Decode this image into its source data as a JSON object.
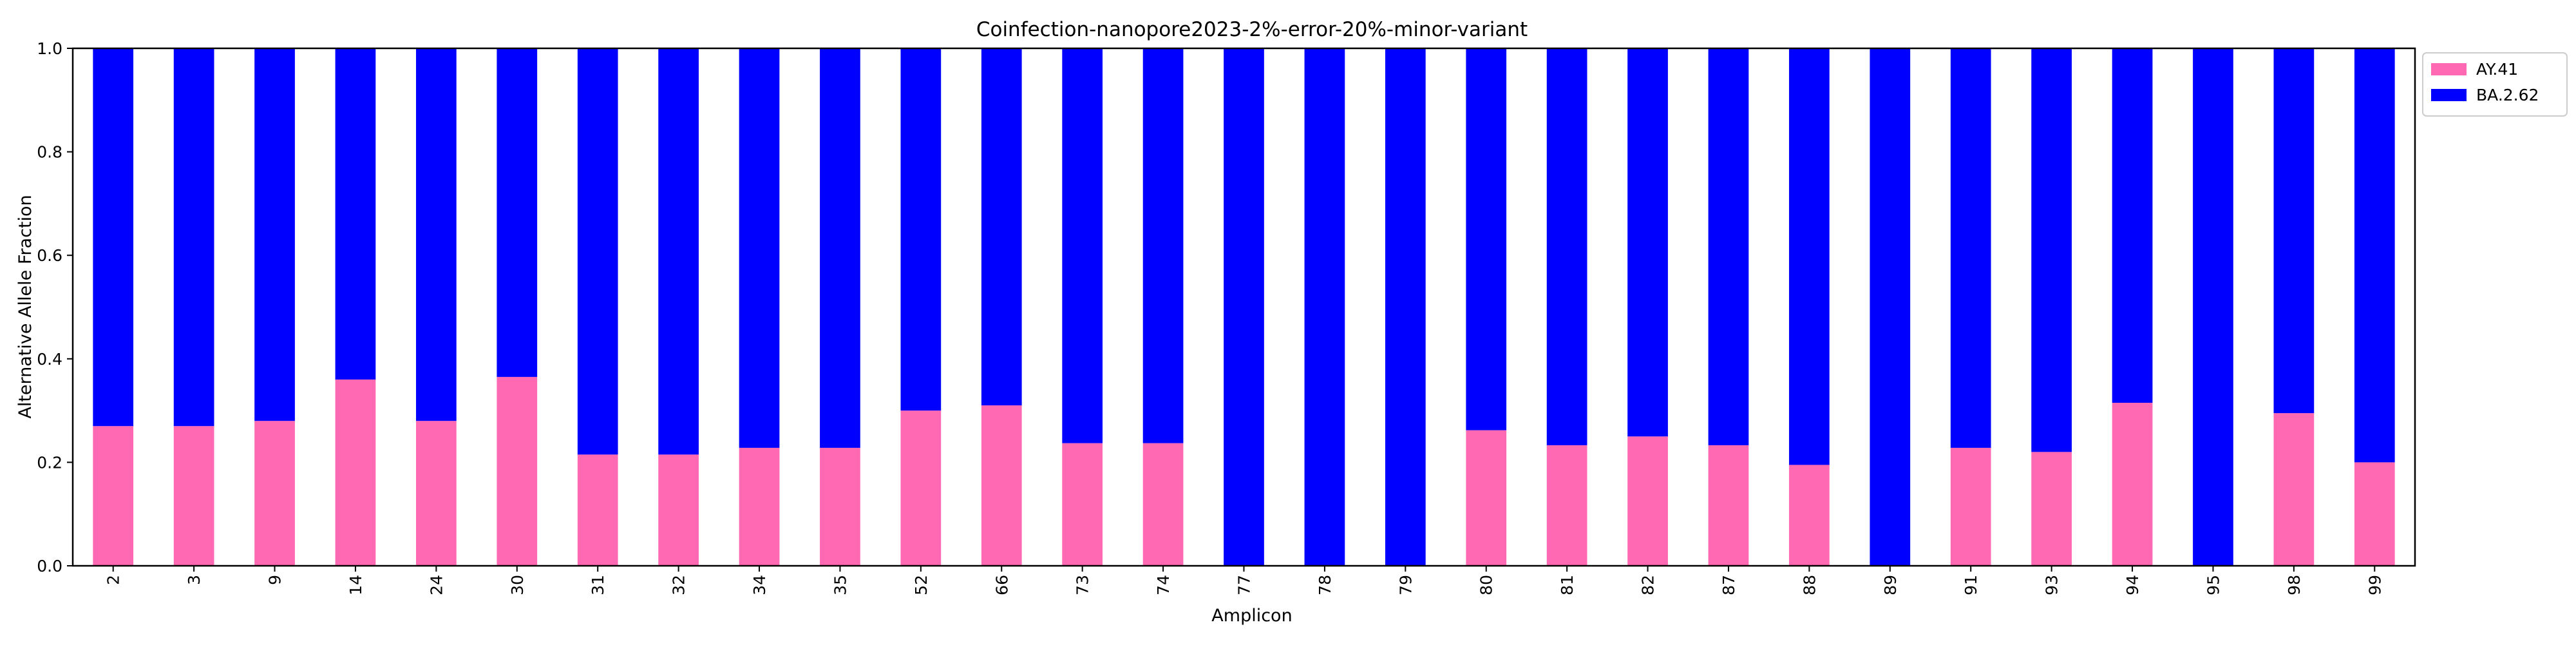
{
  "chart_data": {
    "type": "bar",
    "stacked": true,
    "title": "Coinfection-nanopore2023-2%-error-20%-minor-variant",
    "xlabel": "Amplicon",
    "ylabel": "Alternative Allele Fraction",
    "ylim": [
      0,
      1.0
    ],
    "yticks": [
      "0.0",
      "0.2",
      "0.4",
      "0.6",
      "0.8",
      "1.0"
    ],
    "grid": false,
    "legend_position": "outside-top-right",
    "categories": [
      "2",
      "3",
      "9",
      "14",
      "24",
      "30",
      "31",
      "32",
      "34",
      "35",
      "52",
      "66",
      "73",
      "74",
      "77",
      "78",
      "79",
      "80",
      "81",
      "82",
      "87",
      "88",
      "89",
      "91",
      "93",
      "94",
      "95",
      "98",
      "99"
    ],
    "series": [
      {
        "name": "AY.41",
        "color": "#ff69b4",
        "values": [
          0.27,
          0.27,
          0.28,
          0.36,
          0.28,
          0.365,
          0.215,
          0.215,
          0.228,
          0.228,
          0.3,
          0.31,
          0.237,
          0.237,
          0.0,
          0.0,
          0.0,
          0.262,
          0.233,
          0.25,
          0.233,
          0.195,
          0.0,
          0.228,
          0.22,
          0.315,
          0.0,
          0.295,
          0.2
        ]
      },
      {
        "name": "BA.2.62",
        "color": "#0000ff",
        "values": [
          0.73,
          0.73,
          0.72,
          0.64,
          0.72,
          0.635,
          0.785,
          0.785,
          0.772,
          0.772,
          0.7,
          0.69,
          0.763,
          0.763,
          1.0,
          1.0,
          1.0,
          0.738,
          0.767,
          0.75,
          0.767,
          0.805,
          1.0,
          0.772,
          0.78,
          0.685,
          1.0,
          0.705,
          0.8
        ]
      }
    ]
  }
}
